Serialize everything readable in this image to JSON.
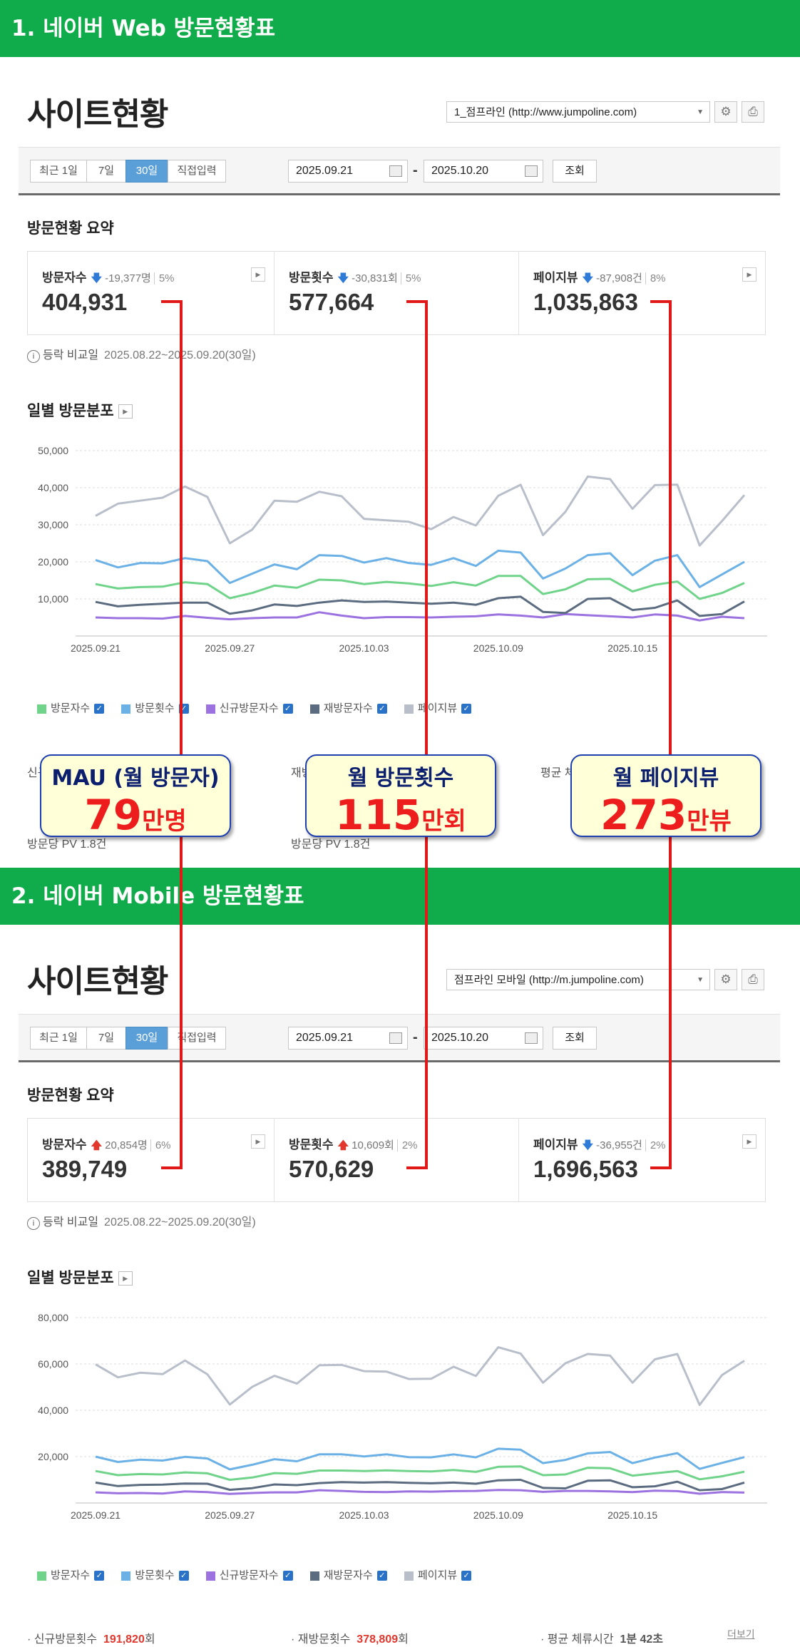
{
  "web": {
    "banner": "1. 네이버 Web 방문현황표",
    "title": "사이트현황",
    "site_select": "1_점프라인 (http://www.jumpoline.com)",
    "tabs": [
      "최근 1일",
      "7일",
      "30일",
      "직접입력"
    ],
    "active_tab": "30일",
    "date_from": "2025.09.21",
    "date_to": "2025.10.20",
    "query_button": "조회",
    "summary_title": "방문현황 요약",
    "cards": [
      {
        "label": "방문자수",
        "direction": "down",
        "change": "-19,377명",
        "pct": "5%",
        "value": "404,931"
      },
      {
        "label": "방문횟수",
        "direction": "down",
        "change": "-30,831회",
        "pct": "5%",
        "value": "577,664"
      },
      {
        "label": "페이지뷰",
        "direction": "down",
        "change": "-87,908건",
        "pct": "8%",
        "value": "1,035,863"
      }
    ],
    "compare_label": "등락 비교일",
    "compare_period": "2025.08.22~2025.09.20(30일)",
    "dist_title": "일별 방문분포",
    "chart_data": {
      "type": "line",
      "x": [
        "2025.09.21",
        "2025.09.22",
        "2025.09.23",
        "2025.09.24",
        "2025.09.25",
        "2025.09.26",
        "2025.09.27",
        "2025.09.28",
        "2025.09.29",
        "2025.09.30",
        "2025.10.01",
        "2025.10.02",
        "2025.10.03",
        "2025.10.04",
        "2025.10.05",
        "2025.10.06",
        "2025.10.07",
        "2025.10.08",
        "2025.10.09",
        "2025.10.10",
        "2025.10.11",
        "2025.10.12",
        "2025.10.13",
        "2025.10.14",
        "2025.10.15",
        "2025.10.16",
        "2025.10.17",
        "2025.10.18",
        "2025.10.19",
        "2025.10.20"
      ],
      "x_tick_labels": [
        "2025.09.21",
        "2025.09.27",
        "2025.10.03",
        "2025.10.09",
        "2025.10.15"
      ],
      "x_tick_index": [
        0,
        6,
        12,
        18,
        24
      ],
      "ylim": [
        0,
        50000
      ],
      "y_ticks": [
        10000,
        20000,
        30000,
        40000,
        50000
      ],
      "y_tick_labels": [
        "10,000",
        "20,000",
        "30,000",
        "40,000",
        "50,000"
      ],
      "grid": true,
      "series": [
        {
          "name": "방문자수",
          "color": "#6fd38a",
          "values": [
            14000,
            12800,
            13200,
            13300,
            14500,
            14000,
            10200,
            11600,
            13600,
            13000,
            15200,
            15000,
            14000,
            14600,
            14200,
            13500,
            14500,
            13600,
            16200,
            16200,
            11300,
            12600,
            15300,
            15400,
            12000,
            13800,
            14700,
            10000,
            11600,
            14300
          ]
        },
        {
          "name": "방문횟수",
          "color": "#6bb1e6",
          "values": [
            20500,
            18500,
            19700,
            19600,
            21000,
            20200,
            14300,
            16800,
            19300,
            18000,
            21800,
            21600,
            19800,
            21000,
            19700,
            19200,
            21000,
            18900,
            23000,
            22500,
            15500,
            18200,
            21800,
            22300,
            16400,
            20300,
            21800,
            13200,
            16600,
            20000
          ]
        },
        {
          "name": "신규방문자수",
          "color": "#9b72e0",
          "values": [
            5000,
            4800,
            4800,
            4700,
            5400,
            4900,
            4500,
            4800,
            5000,
            5000,
            6400,
            5500,
            4800,
            5100,
            5100,
            5000,
            5200,
            5300,
            5800,
            5500,
            5000,
            5900,
            5600,
            5300,
            5000,
            5800,
            5500,
            4200,
            5200,
            4800
          ]
        },
        {
          "name": "재방문자수",
          "color": "#5b6b80",
          "values": [
            9200,
            8000,
            8400,
            8700,
            9000,
            9000,
            6000,
            6900,
            8500,
            8100,
            9000,
            9600,
            9200,
            9300,
            9000,
            8700,
            9000,
            8400,
            10200,
            10600,
            6500,
            6200,
            10000,
            10200,
            7000,
            7600,
            9600,
            5400,
            5900,
            9300
          ]
        },
        {
          "name": "페이지뷰",
          "color": "#b8bfca",
          "values": [
            32400,
            35700,
            36500,
            37300,
            40300,
            37500,
            25000,
            28700,
            36500,
            36200,
            38900,
            37700,
            31600,
            31200,
            30800,
            28800,
            32100,
            29800,
            37800,
            40800,
            27200,
            33500,
            43000,
            42300,
            34300,
            40700,
            40800,
            24400,
            31000,
            38000
          ]
        }
      ]
    },
    "bottom_stats": [
      [
        "신규방문횟수",
        "재방문횟수",
        "평균 체류시간"
      ],
      [
        "방문당 PV 1.8건",
        "방문당 PV 1.8건"
      ]
    ],
    "callouts": [
      {
        "title": "MAU (월 방문자)",
        "num": "79",
        "unit": "만명"
      },
      {
        "title": "월 방문횟수",
        "num": "115",
        "unit": "만회"
      },
      {
        "title": "월 페이지뷰",
        "num": "273",
        "unit": "만뷰"
      }
    ]
  },
  "mobile": {
    "banner": "2. 네이버 Mobile 방문현황표",
    "title": "사이트현황",
    "site_select": "점프라인 모바일 (http://m.jumpoline.com)",
    "tabs": [
      "최근 1일",
      "7일",
      "30일",
      "직접입력"
    ],
    "active_tab": "30일",
    "date_from": "2025.09.21",
    "date_to": "2025.10.20",
    "query_button": "조회",
    "summary_title": "방문현황 요약",
    "cards": [
      {
        "label": "방문자수",
        "direction": "up",
        "change": "20,854명",
        "pct": "6%",
        "value": "389,749"
      },
      {
        "label": "방문횟수",
        "direction": "up",
        "change": "10,609회",
        "pct": "2%",
        "value": "570,629"
      },
      {
        "label": "페이지뷰",
        "direction": "down",
        "change": "-36,955건",
        "pct": "2%",
        "value": "1,696,563"
      }
    ],
    "compare_label": "등락 비교일",
    "compare_period": "2025.08.22~2025.09.20(30일)",
    "dist_title": "일별 방문분포",
    "chart_data": {
      "type": "line",
      "x": [
        "2025.09.21",
        "2025.09.22",
        "2025.09.23",
        "2025.09.24",
        "2025.09.25",
        "2025.09.26",
        "2025.09.27",
        "2025.09.28",
        "2025.09.29",
        "2025.09.30",
        "2025.10.01",
        "2025.10.02",
        "2025.10.03",
        "2025.10.04",
        "2025.10.05",
        "2025.10.06",
        "2025.10.07",
        "2025.10.08",
        "2025.10.09",
        "2025.10.10",
        "2025.10.11",
        "2025.10.12",
        "2025.10.13",
        "2025.10.14",
        "2025.10.15",
        "2025.10.16",
        "2025.10.17",
        "2025.10.18",
        "2025.10.19",
        "2025.10.20"
      ],
      "x_tick_labels": [
        "2025.09.21",
        "2025.09.27",
        "2025.10.03",
        "2025.10.09",
        "2025.10.15"
      ],
      "x_tick_index": [
        0,
        6,
        12,
        18,
        24
      ],
      "ylim": [
        0,
        80000
      ],
      "y_ticks": [
        20000,
        40000,
        60000,
        80000
      ],
      "y_tick_labels": [
        "20,000",
        "40,000",
        "60,000",
        "80,000"
      ],
      "grid": true,
      "series": [
        {
          "name": "방문자수",
          "color": "#6fd38a",
          "values": [
            13800,
            12000,
            12500,
            12300,
            13200,
            12800,
            10000,
            11000,
            12900,
            12600,
            14000,
            14000,
            13800,
            14100,
            13800,
            13600,
            14200,
            13400,
            15600,
            15800,
            12000,
            12300,
            15200,
            15000,
            11800,
            12800,
            13800,
            10200,
            11500,
            13500
          ]
        },
        {
          "name": "방문횟수",
          "color": "#6bb1e6",
          "values": [
            20000,
            17700,
            18700,
            18300,
            19900,
            19200,
            14500,
            16500,
            18900,
            18000,
            21000,
            21000,
            20100,
            21000,
            19800,
            19700,
            21000,
            19700,
            23400,
            23000,
            17200,
            18600,
            21400,
            22000,
            17200,
            19600,
            21500,
            14700,
            17300,
            19800
          ]
        },
        {
          "name": "신규방문자수",
          "color": "#9b72e0",
          "values": [
            4600,
            4200,
            4300,
            4100,
            5000,
            4700,
            3900,
            4300,
            4600,
            4600,
            5500,
            5200,
            4800,
            4700,
            5000,
            4900,
            5100,
            5200,
            5600,
            5500,
            4800,
            5200,
            5200,
            5000,
            4700,
            5300,
            5100,
            4000,
            4700,
            4500
          ]
        },
        {
          "name": "재방문자수",
          "color": "#5b6b80",
          "values": [
            8800,
            7300,
            7800,
            7900,
            8400,
            8300,
            5700,
            6400,
            8000,
            7700,
            8600,
            9000,
            8800,
            9000,
            8700,
            8500,
            8800,
            8300,
            9800,
            10000,
            6500,
            6300,
            9600,
            9800,
            6800,
            7200,
            9200,
            5500,
            6000,
            8800
          ]
        },
        {
          "name": "페이지뷰",
          "color": "#b8bfca",
          "values": [
            59800,
            54200,
            56200,
            55600,
            61500,
            55500,
            42500,
            50100,
            54900,
            51500,
            59400,
            59600,
            56900,
            56700,
            53500,
            53600,
            58800,
            54800,
            67200,
            64500,
            51900,
            60300,
            64300,
            63600,
            51900,
            62000,
            64300,
            42300,
            55200,
            61400
          ]
        }
      ]
    },
    "bottom_stats": [
      {
        "label": "신규방문횟수",
        "value": "191,820",
        "unit": "회"
      },
      {
        "label": "재방문횟수",
        "value": "378,809",
        "unit": "회"
      },
      {
        "label": "평균 체류시간",
        "value": "1분 42초",
        "unit": ""
      }
    ],
    "more_link": "더보기"
  }
}
